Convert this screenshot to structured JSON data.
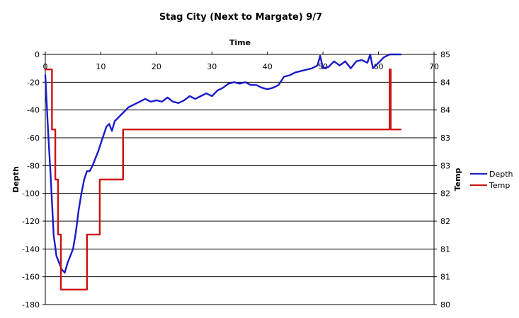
{
  "chart_data": {
    "type": "line",
    "title": "Stag City (Next to Margate) 9/7",
    "xlabel": "Time",
    "ylabel": "Depth",
    "y2label": "Temp",
    "xlim": [
      0,
      70
    ],
    "ylim": [
      -180,
      0
    ],
    "y2lim": [
      80,
      85
    ],
    "x_ticks": [
      0,
      10,
      20,
      30,
      40,
      50,
      60,
      70
    ],
    "y_ticks": [
      0,
      -20,
      -40,
      -60,
      -80,
      -100,
      -120,
      -140,
      -160,
      -180
    ],
    "y2_tick_labels": [
      "85",
      "84",
      "84",
      "83",
      "83",
      "82",
      "82",
      "81",
      "81",
      "80"
    ],
    "grid": "horizontal",
    "legend_position": "right",
    "series": [
      {
        "name": "Depth",
        "axis": "left",
        "color": "#1a1acc",
        "x": [
          0,
          0.5,
          1,
          1.5,
          2,
          2.5,
          3,
          3.5,
          4,
          4.5,
          5,
          5.5,
          6,
          6.5,
          7,
          7.5,
          8,
          8.5,
          9,
          9.5,
          10,
          10.5,
          11,
          11.5,
          12,
          12.5,
          13,
          13.5,
          14,
          15,
          16,
          17,
          18,
          19,
          20,
          21,
          22,
          23,
          24,
          25,
          26,
          27,
          28,
          29,
          30,
          31,
          32,
          33,
          34,
          35,
          36,
          37,
          38,
          39,
          40,
          41,
          42,
          43,
          44,
          45,
          46,
          47,
          48,
          49,
          49.5,
          50,
          51,
          52,
          53,
          54,
          55,
          56,
          57,
          58,
          58.5,
          59,
          60,
          61,
          62,
          63,
          64
        ],
        "values": [
          -15,
          -55,
          -90,
          -130,
          -145,
          -150,
          -155,
          -157,
          -150,
          -145,
          -140,
          -128,
          -112,
          -100,
          -90,
          -84,
          -84,
          -80,
          -75,
          -70,
          -64,
          -58,
          -52,
          -50,
          -55,
          -48,
          -46,
          -44,
          -42,
          -38,
          -36,
          -34,
          -32,
          -34,
          -33,
          -34,
          -31,
          -34,
          -35,
          -33,
          -30,
          -32,
          -30,
          -28,
          -30,
          -26,
          -24,
          -21,
          -20,
          -21,
          -20,
          -22,
          -22,
          -24,
          -25,
          -24,
          -22,
          -16,
          -15,
          -13,
          -12,
          -11,
          -10,
          -8,
          -1,
          -10,
          -9,
          -5,
          -8,
          -5,
          -10,
          -5,
          -4,
          -6,
          0,
          -10,
          -6,
          -2,
          0,
          0,
          0
        ]
      },
      {
        "name": "Temp",
        "axis": "right",
        "color": "#cc1111",
        "x": [
          0,
          1.2,
          1.2,
          1.8,
          1.8,
          2.3,
          2.3,
          2.8,
          2.8,
          3.8,
          3.8,
          4.2,
          4.2,
          7.5,
          7.5,
          7.8,
          7.8,
          9.8,
          9.8,
          10.3,
          10.3,
          14,
          14,
          14.2,
          14.2,
          62,
          62,
          62.2,
          62.2,
          62.4,
          62.4,
          64
        ],
        "values": [
          84.7,
          84.7,
          83.5,
          83.5,
          82.5,
          82.5,
          81.4,
          81.4,
          80.3,
          80.3,
          80.3,
          80.3,
          80.3,
          80.3,
          81.4,
          81.4,
          81.4,
          81.4,
          82.5,
          82.5,
          82.5,
          82.5,
          83.5,
          83.5,
          83.5,
          83.5,
          84.7,
          84.7,
          83.5,
          83.5,
          83.5,
          83.5
        ]
      }
    ]
  }
}
